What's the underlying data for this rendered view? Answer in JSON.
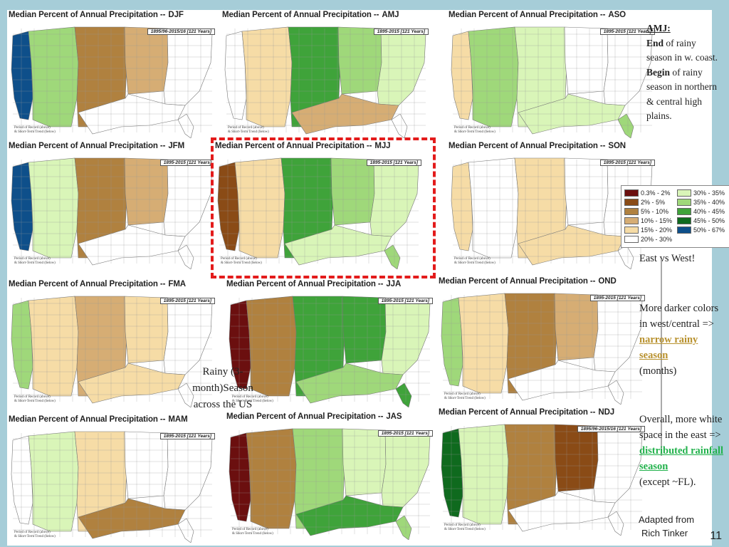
{
  "panels": [
    {
      "title": "Median Percent of Annual Precipitation --",
      "code": "DJF",
      "period": "1895/96-2015/16 [121 Years]",
      "note": "Period of Record (above)\n& Short-Term Trend (below)"
    },
    {
      "title": "Median Percent of Annual Precipitation --",
      "code": "AMJ",
      "period": "1895-2015 [121 Years]",
      "note": "Period of Record (above)\n& Short-Term Trend (below)"
    },
    {
      "title": "Median Percent of Annual Precipitation --",
      "code": "ASO",
      "period": "1895-2015 [121 Years]",
      "note": "Period of Record (above)\n& Short-Term Trend (below)"
    },
    {
      "title": "Median Percent of Annual Precipitation --",
      "code": "JFM",
      "period": "1895-2015 [121 Years]",
      "note": "Period of Record (above)\n& Short-Term Trend (below)"
    },
    {
      "title": "Median Percent of Annual Precipitation --",
      "code": "MJJ",
      "period": "1895-2015 [121 Years]",
      "note": "Period of Record (above)\n& Short-Term Trend (below)"
    },
    {
      "title": "Median Percent of Annual Precipitation --",
      "code": "SON",
      "period": "1895-2015 [121 Years]",
      "note": "Period of Record (above)\n& Short-Term Trend (below)"
    },
    {
      "title": "Median Percent of Annual Precipitation --",
      "code": "FMA",
      "period": "1895-2015 [121 Years]",
      "note": "Period of Record (above)\n& Short-Term Trend (below)"
    },
    {
      "title": "Median Percent of Annual Precipitation --",
      "code": "JJA",
      "period": "1895-2015 [121 Years]",
      "note": "Period of Record (above)\n& Short-Term Trend (below)"
    },
    {
      "title": "Median Percent of Annual Precipitation --",
      "code": "OND",
      "period": "1895-2015 [121 Years]",
      "note": "Period of Record (above)\n& Short-Term Trend (below)"
    },
    {
      "title": "Median Percent of Annual Precipitation --",
      "code": "MAM",
      "period": "1895-2015 [121 Years]",
      "note": "Period of Record (above)\n& Short-Term Trend (below)"
    },
    {
      "title": "Median Percent of Annual Precipitation --",
      "code": "JAS",
      "period": "1895-2015 [121 Years]",
      "note": "Period of Record (above)\n& Short-Term Trend (below)"
    },
    {
      "title": "Median Percent of Annual Precipitation --",
      "code": "NDJ",
      "period": "1895/96-2015/16 [121 Years]",
      "note": "Period of Record (above)\n& Short-Term Trend (below)"
    }
  ],
  "legend": {
    "left": [
      {
        "label": "0.3% - 2%",
        "color": "#6b0f0f"
      },
      {
        "label": "2% - 5%",
        "color": "#8a4b16"
      },
      {
        "label": "5% - 10%",
        "color": "#b0813f"
      },
      {
        "label": "10% - 15%",
        "color": "#d6ad74"
      },
      {
        "label": "15% - 20%",
        "color": "#f6dca6"
      },
      {
        "label": "20% - 30%",
        "color": "#ffffff"
      }
    ],
    "right": [
      {
        "label": "30% - 35%",
        "color": "#d9f5b8"
      },
      {
        "label": "35% - 40%",
        "color": "#9fd87a"
      },
      {
        "label": "40% - 45%",
        "color": "#3fa33a"
      },
      {
        "label": "45% - 50%",
        "color": "#0f6a1e"
      },
      {
        "label": "50% - 67%",
        "color": "#0e4f8a"
      }
    ]
  },
  "side": {
    "amj_head": "AMJ:",
    "end_word": "End",
    "end_rest": " of rainy season in w. coast.",
    "begin_word": "Begin",
    "begin_rest": " of rainy season in northern & central high plains.",
    "east_west": "East  vs West!",
    "darker": "More darker colors in west/central =>",
    "narrow": "narrow rainy season",
    "months": "(months)",
    "overall": "Overall, more white space in the east =>",
    "distributed": "distributed rainfall season",
    "except": "(except ~FL)."
  },
  "rainy_label": "Rainy (3-month)Season across the US",
  "credit": {
    "line1": "Adapted from",
    "line2": "Rich Tinker"
  },
  "page_number": "11"
}
